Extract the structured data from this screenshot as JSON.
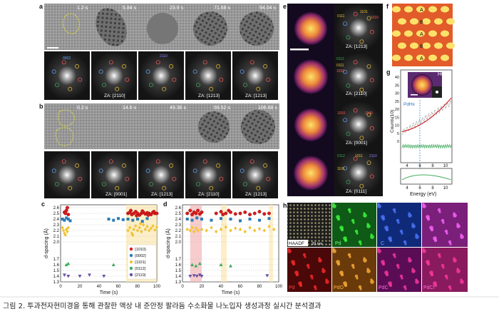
{
  "panels": {
    "a": {
      "letter": "a",
      "times": [
        "1.2 s",
        "5.84 s",
        "23.9 s",
        "71.68 s",
        "94.04 s"
      ],
      "fft_labels": [
        "ZA: [2110]",
        "ZA: [1213]",
        "ZA: [1213]"
      ],
      "fft_tags": [
        "0002",
        "2110"
      ]
    },
    "b": {
      "letter": "b",
      "times": [
        "0.2 s",
        "14.6 s",
        "49.36 s",
        "59.52 s",
        "106.68 s"
      ],
      "fft_labels": [
        "ZA: [0001]",
        "ZA: [1213]",
        "ZA: [2110]",
        "ZA: [1213]"
      ]
    },
    "e": {
      "letter": "e",
      "za_labels": [
        "ZA: [1213]",
        "ZA: [2110]",
        "ZA: [0001]",
        "ZA: [0111]"
      ],
      "spot_labels": [
        "0111",
        "1101",
        "1010",
        "0112",
        "0111",
        "1010",
        "1010",
        "1100",
        "0112",
        "1011",
        "2110",
        "1101"
      ]
    },
    "f": {
      "letter": "f",
      "rows": [
        "A",
        "B",
        "A",
        "B",
        "A"
      ]
    },
    "g": {
      "letter": "g",
      "inset_label": "HCP",
      "pdh_label": "PdHx",
      "xlabel": "Energy (eV)",
      "ylabel": "Counts(10)",
      "yticks": [
        "40",
        "35",
        "30",
        "25",
        "20",
        "15",
        "10",
        "5",
        "0"
      ],
      "xticks": [
        "4",
        "6",
        "8",
        "10"
      ],
      "xticks2": [
        "4",
        "6",
        "8",
        "10"
      ]
    },
    "h": {
      "letter": "h",
      "labels_top": [
        "HAADF",
        "Pd",
        "C"
      ],
      "scale": "20 nm",
      "labels_bottom": [
        "PdO",
        "PdC",
        "PdCl"
      ],
      "bottom_prefix": [
        "Pd",
        "Pd",
        "Pd",
        "Pd"
      ]
    }
  },
  "chart_data": [
    {
      "type": "scatter",
      "letter": "c",
      "xlabel": "Time (s)",
      "ylabel": "d-spacing (Å)",
      "xlim": [
        0,
        100
      ],
      "ylim": [
        1.3,
        2.65
      ],
      "xticks": [
        "0",
        "20",
        "40",
        "60",
        "80",
        "100"
      ],
      "yticks": [
        "2.6",
        "2.5",
        "2.4",
        "2.3",
        "2.2",
        "2.1",
        "2.0",
        "1.7",
        "1.6",
        "1.5",
        "1.4",
        "1.3"
      ],
      "series": [
        {
          "name": "{1010}",
          "color": "#d7191c",
          "marker": "circle",
          "points": [
            [
              4,
              2.52
            ],
            [
              5,
              2.5
            ],
            [
              6,
              2.55
            ],
            [
              7,
              2.6
            ],
            [
              8,
              2.48
            ],
            [
              70,
              2.5
            ],
            [
              72,
              2.52
            ],
            [
              74,
              2.48
            ],
            [
              76,
              2.5
            ],
            [
              78,
              2.53
            ],
            [
              80,
              2.5
            ],
            [
              82,
              2.47
            ],
            [
              84,
              2.5
            ],
            [
              86,
              2.52
            ],
            [
              88,
              2.49
            ],
            [
              90,
              2.51
            ],
            [
              92,
              2.5
            ],
            [
              94,
              2.48
            ],
            [
              96,
              2.52
            ],
            [
              98,
              2.5
            ],
            [
              100,
              2.5
            ],
            [
              73,
              2.55
            ],
            [
              79,
              2.46
            ],
            [
              85,
              2.54
            ],
            [
              91,
              2.47
            ],
            [
              97,
              2.53
            ]
          ]
        },
        {
          "name": "{0002}",
          "color": "#2c7bb6",
          "marker": "square",
          "points": [
            [
              2,
              2.4
            ],
            [
              4,
              2.38
            ],
            [
              6,
              2.42
            ],
            [
              8,
              2.4
            ],
            [
              10,
              2.37
            ],
            [
              50,
              2.4
            ],
            [
              55,
              2.38
            ],
            [
              60,
              2.41
            ],
            [
              65,
              2.39
            ],
            [
              70,
              2.4
            ],
            [
              75,
              2.38
            ],
            [
              80,
              2.4
            ],
            [
              85,
              2.36
            ],
            [
              90,
              2.41
            ]
          ]
        },
        {
          "name": "{1101}",
          "color": "#f1c232",
          "marker": "diamond",
          "points": [
            [
              2,
              2.25
            ],
            [
              3,
              2.2
            ],
            [
              4,
              2.15
            ],
            [
              5,
              2.12
            ],
            [
              6,
              2.22
            ],
            [
              7,
              2.18
            ],
            [
              8,
              2.25
            ],
            [
              70,
              2.2
            ],
            [
              72,
              2.25
            ],
            [
              74,
              2.15
            ],
            [
              76,
              2.22
            ],
            [
              78,
              2.28
            ],
            [
              80,
              2.2
            ],
            [
              82,
              2.25
            ],
            [
              84,
              2.18
            ],
            [
              86,
              2.3
            ],
            [
              88,
              2.22
            ],
            [
              90,
              2.27
            ],
            [
              92,
              2.2
            ],
            [
              94,
              2.24
            ],
            [
              96,
              2.28
            ],
            [
              98,
              2.21
            ],
            [
              100,
              2.26
            ],
            [
              75,
              2.12
            ],
            [
              83,
              2.32
            ]
          ]
        },
        {
          "name": "{0112}",
          "color": "#41ab5d",
          "marker": "triangle-up",
          "points": [
            [
              6,
              1.6
            ],
            [
              8,
              1.62
            ],
            [
              55,
              1.6
            ],
            [
              72,
              1.58
            ],
            [
              85,
              1.6
            ]
          ]
        },
        {
          "name": "{2110}",
          "color": "#6a51a3",
          "marker": "triangle-down",
          "points": [
            [
              4,
              1.42
            ],
            [
              8,
              1.4
            ],
            [
              20,
              1.4
            ],
            [
              30,
              1.42
            ],
            [
              45,
              1.4
            ],
            [
              78,
              1.41
            ]
          ]
        }
      ]
    },
    {
      "type": "scatter",
      "letter": "d",
      "xlabel": "Time (s)",
      "ylabel": "d-spacing (Å)",
      "xlim": [
        0,
        100
      ],
      "ylim": [
        1.3,
        2.65
      ],
      "xticks": [
        "0",
        "20",
        "40",
        "60",
        "80",
        "100"
      ],
      "yticks": [
        "2.6",
        "2.5",
        "2.4",
        "2.3",
        "2.2",
        "2.1",
        "2.0",
        "1.7",
        "1.6",
        "1.5",
        "1.4",
        "1.3"
      ],
      "series": [
        {
          "name": "{1010}",
          "color": "#d7191c",
          "marker": "circle",
          "points": [
            [
              5,
              2.5
            ],
            [
              8,
              2.55
            ],
            [
              10,
              2.48
            ],
            [
              12,
              2.52
            ],
            [
              14,
              2.5
            ],
            [
              16,
              2.55
            ],
            [
              18,
              2.49
            ],
            [
              20,
              2.52
            ],
            [
              35,
              2.5
            ],
            [
              40,
              2.53
            ],
            [
              42,
              2.48
            ],
            [
              45,
              2.5
            ],
            [
              48,
              2.55
            ],
            [
              50,
              2.52
            ],
            [
              55,
              2.49
            ],
            [
              60,
              2.5
            ],
            [
              65,
              2.52
            ],
            [
              70,
              2.48
            ],
            [
              75,
              2.5
            ],
            [
              80,
              2.53
            ],
            [
              85,
              2.49
            ],
            [
              90,
              2.5
            ]
          ]
        },
        {
          "name": "{0002}",
          "color": "#2c7bb6",
          "marker": "square",
          "points": [
            [
              5,
              2.4
            ],
            [
              10,
              2.38
            ],
            [
              15,
              2.42
            ],
            [
              20,
              2.4
            ],
            [
              30,
              2.38
            ],
            [
              40,
              2.41
            ],
            [
              50,
              2.4
            ],
            [
              60,
              2.37
            ],
            [
              70,
              2.4
            ],
            [
              80,
              2.38
            ],
            [
              90,
              2.41
            ]
          ]
        },
        {
          "name": "{1101}",
          "color": "#f1c232",
          "marker": "diamond",
          "points": [
            [
              5,
              2.22
            ],
            [
              8,
              2.2
            ],
            [
              10,
              2.25
            ],
            [
              12,
              2.18
            ],
            [
              14,
              2.24
            ],
            [
              16,
              2.2
            ],
            [
              20,
              2.22
            ],
            [
              25,
              2.2
            ],
            [
              30,
              2.25
            ],
            [
              35,
              2.18
            ],
            [
              40,
              2.22
            ],
            [
              45,
              2.26
            ],
            [
              50,
              2.2
            ],
            [
              55,
              2.24
            ],
            [
              60,
              2.22
            ],
            [
              65,
              2.18
            ],
            [
              70,
              2.25
            ],
            [
              75,
              2.2
            ],
            [
              80,
              2.23
            ],
            [
              85,
              2.2
            ],
            [
              90,
              2.27
            ],
            [
              95,
              2.22
            ]
          ]
        },
        {
          "name": "{0112}",
          "color": "#41ab5d",
          "marker": "triangle-up",
          "points": [
            [
              10,
              1.6
            ],
            [
              14,
              1.58
            ],
            [
              18,
              1.62
            ],
            [
              40,
              1.6
            ],
            [
              50,
              1.58
            ]
          ]
        },
        {
          "name": "{2110}",
          "color": "#6a51a3",
          "marker": "triangle-down",
          "points": [
            [
              8,
              1.4
            ],
            [
              12,
              1.41
            ],
            [
              15,
              1.4
            ],
            [
              18,
              1.42
            ],
            [
              20,
              1.4
            ],
            [
              88,
              1.41
            ]
          ]
        }
      ]
    }
  ],
  "caption": "그림 2. 투과전자현미경을 통해 관찰한 액상 내 준안정 팔라듐 수소화물 나노입자 생성과정 실시간 분석결과"
}
